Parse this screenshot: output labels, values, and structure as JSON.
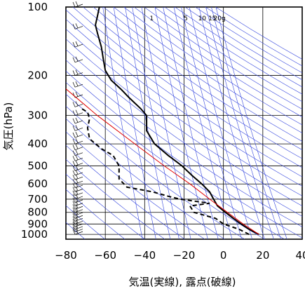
{
  "chart_data": {
    "type": "line",
    "title": "",
    "xlabel": "気温(実線), 露点(破線)",
    "ylabel": "気圧(hPa)",
    "x_range": [
      -80,
      40
    ],
    "y_range_hPa": [
      1050,
      100
    ],
    "y_scale": "log",
    "grid": true,
    "x_ticks": [
      -80,
      -60,
      -40,
      -20,
      0,
      20,
      40
    ],
    "x_tick_labels": [
      "−80",
      "−60",
      "−40",
      "−20",
      "0",
      "20",
      "40"
    ],
    "y_ticks": [
      100,
      200,
      300,
      400,
      500,
      600,
      700,
      800,
      900,
      1000
    ],
    "mixing_ratio_labels": [
      "1",
      "5",
      "10",
      "15",
      "20g"
    ],
    "mixing_ratio_values": [
      1,
      5,
      10,
      15,
      20
    ],
    "series": [
      {
        "style": "solid",
        "color": "#000000",
        "points": [
          {
            "p": 1000,
            "t": 18
          },
          {
            "p": 950,
            "t": 13
          },
          {
            "p": 900,
            "t": 9
          },
          {
            "p": 850,
            "t": 5
          },
          {
            "p": 800,
            "t": 1
          },
          {
            "p": 750,
            "t": -3
          },
          {
            "p": 700,
            "t": -5
          },
          {
            "p": 650,
            "t": -7
          },
          {
            "p": 600,
            "t": -11
          },
          {
            "p": 550,
            "t": -16
          },
          {
            "p": 500,
            "t": -21
          },
          {
            "p": 450,
            "t": -28
          },
          {
            "p": 400,
            "t": -35
          },
          {
            "p": 350,
            "t": -39
          },
          {
            "p": 300,
            "t": -39
          },
          {
            "p": 280,
            "t": -42
          },
          {
            "p": 250,
            "t": -48
          },
          {
            "p": 230,
            "t": -52
          },
          {
            "p": 210,
            "t": -57
          },
          {
            "p": 190,
            "t": -60
          },
          {
            "p": 170,
            "t": -61
          },
          {
            "p": 150,
            "t": -62
          },
          {
            "p": 130,
            "t": -64
          },
          {
            "p": 120,
            "t": -65
          },
          {
            "p": 110,
            "t": -64
          },
          {
            "p": 100,
            "t": -63
          }
        ]
      },
      {
        "style": "dashed",
        "color": "#000000",
        "points": [
          {
            "p": 1000,
            "t": 13
          },
          {
            "p": 950,
            "t": 8
          },
          {
            "p": 900,
            "t": 0
          },
          {
            "p": 850,
            "t": -4
          },
          {
            "p": 800,
            "t": -15
          },
          {
            "p": 750,
            "t": -17
          },
          {
            "p": 730,
            "t": -7
          },
          {
            "p": 700,
            "t": -22
          },
          {
            "p": 680,
            "t": -28
          },
          {
            "p": 650,
            "t": -36
          },
          {
            "p": 620,
            "t": -49
          },
          {
            "p": 570,
            "t": -53
          },
          {
            "p": 500,
            "t": -53
          },
          {
            "p": 450,
            "t": -56
          },
          {
            "p": 420,
            "t": -62
          },
          {
            "p": 380,
            "t": -68
          },
          {
            "p": 340,
            "t": -69
          },
          {
            "p": 310,
            "t": -68
          },
          {
            "p": 290,
            "t": -69
          },
          {
            "p": 280,
            "t": -72
          }
        ]
      },
      {
        "style": "solid",
        "color": "#e00000",
        "points": [
          {
            "p": 1000,
            "t": 18
          },
          {
            "p": 900,
            "t": 10
          },
          {
            "p": 800,
            "t": 2
          },
          {
            "p": 700,
            "t": -7
          },
          {
            "p": 600,
            "t": -17
          },
          {
            "p": 500,
            "t": -30
          },
          {
            "p": 400,
            "t": -45
          },
          {
            "p": 300,
            "t": -64
          },
          {
            "p": 200,
            "t": -88
          }
        ]
      }
    ]
  }
}
